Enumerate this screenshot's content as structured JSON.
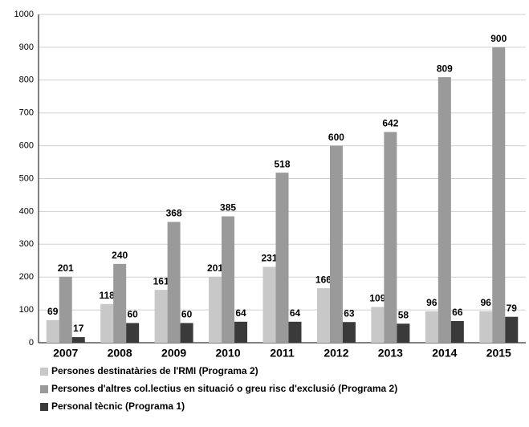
{
  "chart_data": {
    "type": "bar",
    "categories": [
      "2007",
      "2008",
      "2009",
      "2010",
      "2011",
      "2012",
      "2013",
      "2014",
      "2015"
    ],
    "series": [
      {
        "name": "Persones destinatàries de l'RMI (Programa 2)",
        "color": "#c8c8c8",
        "values": [
          69,
          118,
          161,
          201,
          231,
          166,
          109,
          96,
          96
        ]
      },
      {
        "name": "Persones d'altres col.lectius en situació o greu risc d'exclusió (Programa 2)",
        "color": "#9a9a9a",
        "values": [
          201,
          240,
          368,
          385,
          518,
          600,
          642,
          809,
          900
        ]
      },
      {
        "name": "Personal tècnic (Programa 1)",
        "color": "#3a3a3a",
        "values": [
          17,
          60,
          60,
          64,
          64,
          63,
          58,
          66,
          79
        ]
      }
    ],
    "ylim": [
      0,
      1000
    ],
    "yticks": [
      0,
      100,
      200,
      300,
      400,
      500,
      600,
      700,
      800,
      900,
      1000
    ],
    "grid": true,
    "legend": "bottom"
  }
}
